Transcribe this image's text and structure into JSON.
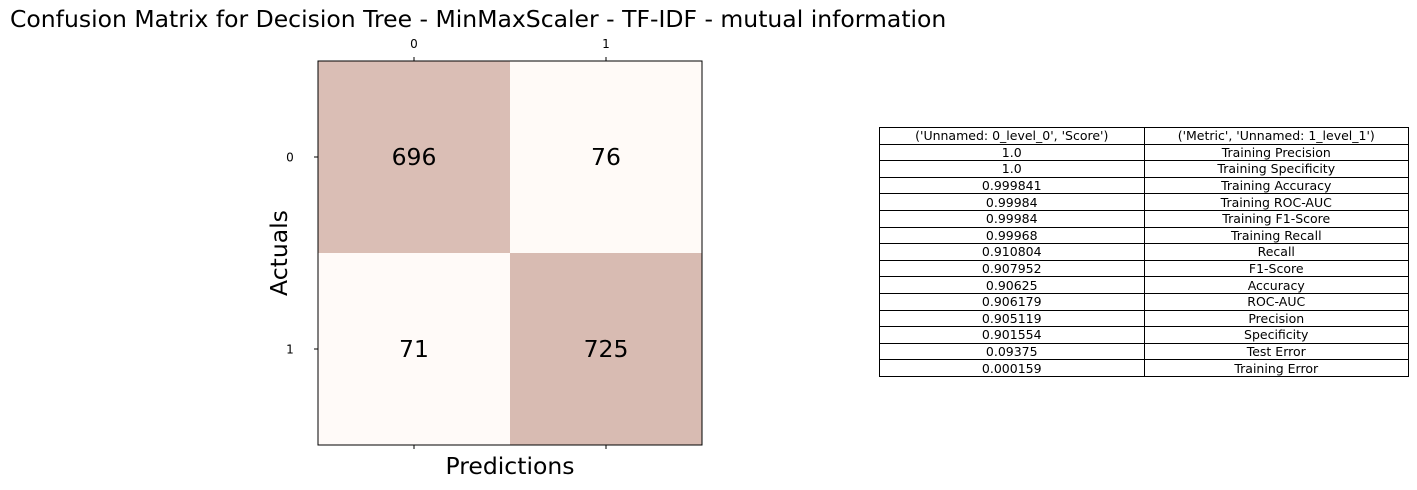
{
  "chart_data": [
    {
      "type": "heatmap",
      "title": "Confusion Matrix for Decision Tree - MinMaxScaler - TF-IDF - mutual information",
      "xlabel": "Predictions",
      "ylabel": "Actuals",
      "x_ticks": [
        "0",
        "1"
      ],
      "y_ticks": [
        "0",
        "1"
      ],
      "x_ticks_position": "top",
      "matrix": [
        [
          696,
          76
        ],
        [
          71,
          725
        ]
      ],
      "colors": {
        "high": "#d8bbb2",
        "low": "#fffaf8"
      }
    },
    {
      "type": "table",
      "columns": [
        "('Unnamed: 0_level_0', 'Score')",
        "('Metric', 'Unnamed: 1_level_1')"
      ],
      "rows": [
        [
          "1.0",
          "Training Precision"
        ],
        [
          "1.0",
          "Training Specificity"
        ],
        [
          "0.999841",
          "Training Accuracy"
        ],
        [
          "0.99984",
          "Training ROC-AUC"
        ],
        [
          "0.99984",
          "Training F1-Score"
        ],
        [
          "0.99968",
          "Training Recall"
        ],
        [
          "0.910804",
          "Recall"
        ],
        [
          "0.907952",
          "F1-Score"
        ],
        [
          "0.90625",
          "Accuracy"
        ],
        [
          "0.906179",
          "ROC-AUC"
        ],
        [
          "0.905119",
          "Precision"
        ],
        [
          "0.901554",
          "Specificity"
        ],
        [
          "0.09375",
          "Test Error"
        ],
        [
          "0.000159",
          "Training Error"
        ]
      ]
    }
  ]
}
